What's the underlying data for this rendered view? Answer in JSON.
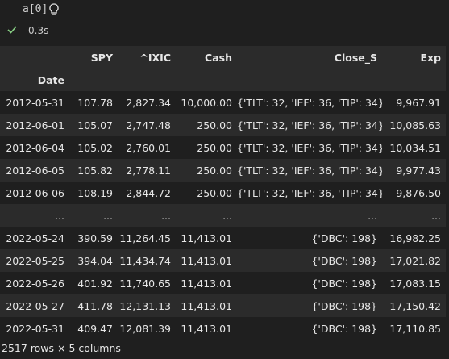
{
  "cell": {
    "code": "a[0]",
    "status": "0.3s"
  },
  "table": {
    "columns": [
      "SPY",
      "^IXIC",
      "Cash",
      "Close_S",
      "Exp"
    ],
    "index_name": "Date",
    "rows": [
      [
        "2012-05-31",
        "107.78",
        "2,827.34",
        "10,000.00",
        "{'TLT': 32, 'IEF': 36, 'TIP': 34}",
        "9,967.91"
      ],
      [
        "2012-06-01",
        "105.07",
        "2,747.48",
        "250.00",
        "{'TLT': 32, 'IEF': 36, 'TIP': 34}",
        "10,085.63"
      ],
      [
        "2012-06-04",
        "105.02",
        "2,760.01",
        "250.00",
        "{'TLT': 32, 'IEF': 36, 'TIP': 34}",
        "10,034.51"
      ],
      [
        "2012-06-05",
        "105.82",
        "2,778.11",
        "250.00",
        "{'TLT': 32, 'IEF': 36, 'TIP': 34}",
        "9,977.43"
      ],
      [
        "2012-06-06",
        "108.19",
        "2,844.72",
        "250.00",
        "{'TLT': 32, 'IEF': 36, 'TIP': 34}",
        "9,876.50"
      ],
      [
        "...",
        "...",
        "...",
        "...",
        "...",
        "..."
      ],
      [
        "2022-05-24",
        "390.59",
        "11,264.45",
        "11,413.01",
        "{'DBC': 198}",
        "16,982.25"
      ],
      [
        "2022-05-25",
        "394.04",
        "11,434.74",
        "11,413.01",
        "{'DBC': 198}",
        "17,021.82"
      ],
      [
        "2022-05-26",
        "401.92",
        "11,740.65",
        "11,413.01",
        "{'DBC': 198}",
        "17,083.15"
      ],
      [
        "2022-05-27",
        "411.78",
        "12,131.13",
        "11,413.01",
        "{'DBC': 198}",
        "17,150.42"
      ],
      [
        "2022-05-31",
        "409.47",
        "12,081.39",
        "11,413.01",
        "{'DBC': 198}",
        "17,110.85"
      ]
    ],
    "footer": "2517 rows × 5 columns"
  }
}
